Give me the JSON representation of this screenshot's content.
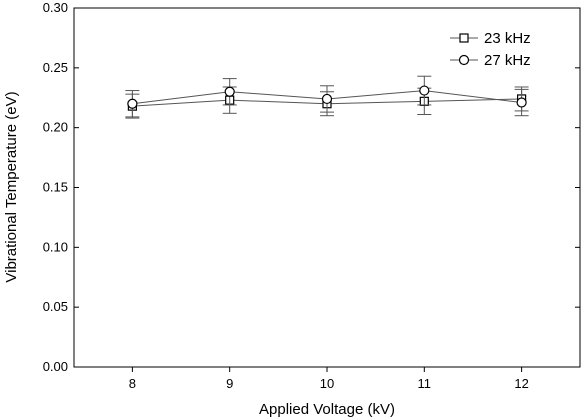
{
  "chart_data": {
    "type": "line",
    "xlabel": "Applied Voltage (kV)",
    "ylabel": "Vibrational Temperature (eV)",
    "xlim": [
      7.4,
      12.6
    ],
    "ylim": [
      0.0,
      0.3
    ],
    "x_ticks": [
      8,
      9,
      10,
      11,
      12
    ],
    "y_ticks": [
      0.0,
      0.05,
      0.1,
      0.15,
      0.2,
      0.25,
      0.3
    ],
    "x_tick_labels": [
      "8",
      "9",
      "10",
      "11",
      "12"
    ],
    "y_tick_labels": [
      "0.00",
      "0.05",
      "0.10",
      "0.15",
      "0.20",
      "0.25",
      "0.30"
    ],
    "grid": false,
    "legend_position": "top-right",
    "series": [
      {
        "name": "23 kHz",
        "marker": "square",
        "color": "#555555",
        "x": [
          8,
          9,
          10,
          11,
          12
        ],
        "y": [
          0.218,
          0.223,
          0.22,
          0.222,
          0.224
        ],
        "err": [
          0.01,
          0.011,
          0.01,
          0.011,
          0.01
        ]
      },
      {
        "name": "27 kHz",
        "marker": "circle",
        "color": "#555555",
        "x": [
          8,
          9,
          10,
          11,
          12
        ],
        "y": [
          0.22,
          0.23,
          0.224,
          0.231,
          0.221
        ],
        "err": [
          0.011,
          0.011,
          0.011,
          0.012,
          0.011
        ]
      }
    ]
  }
}
